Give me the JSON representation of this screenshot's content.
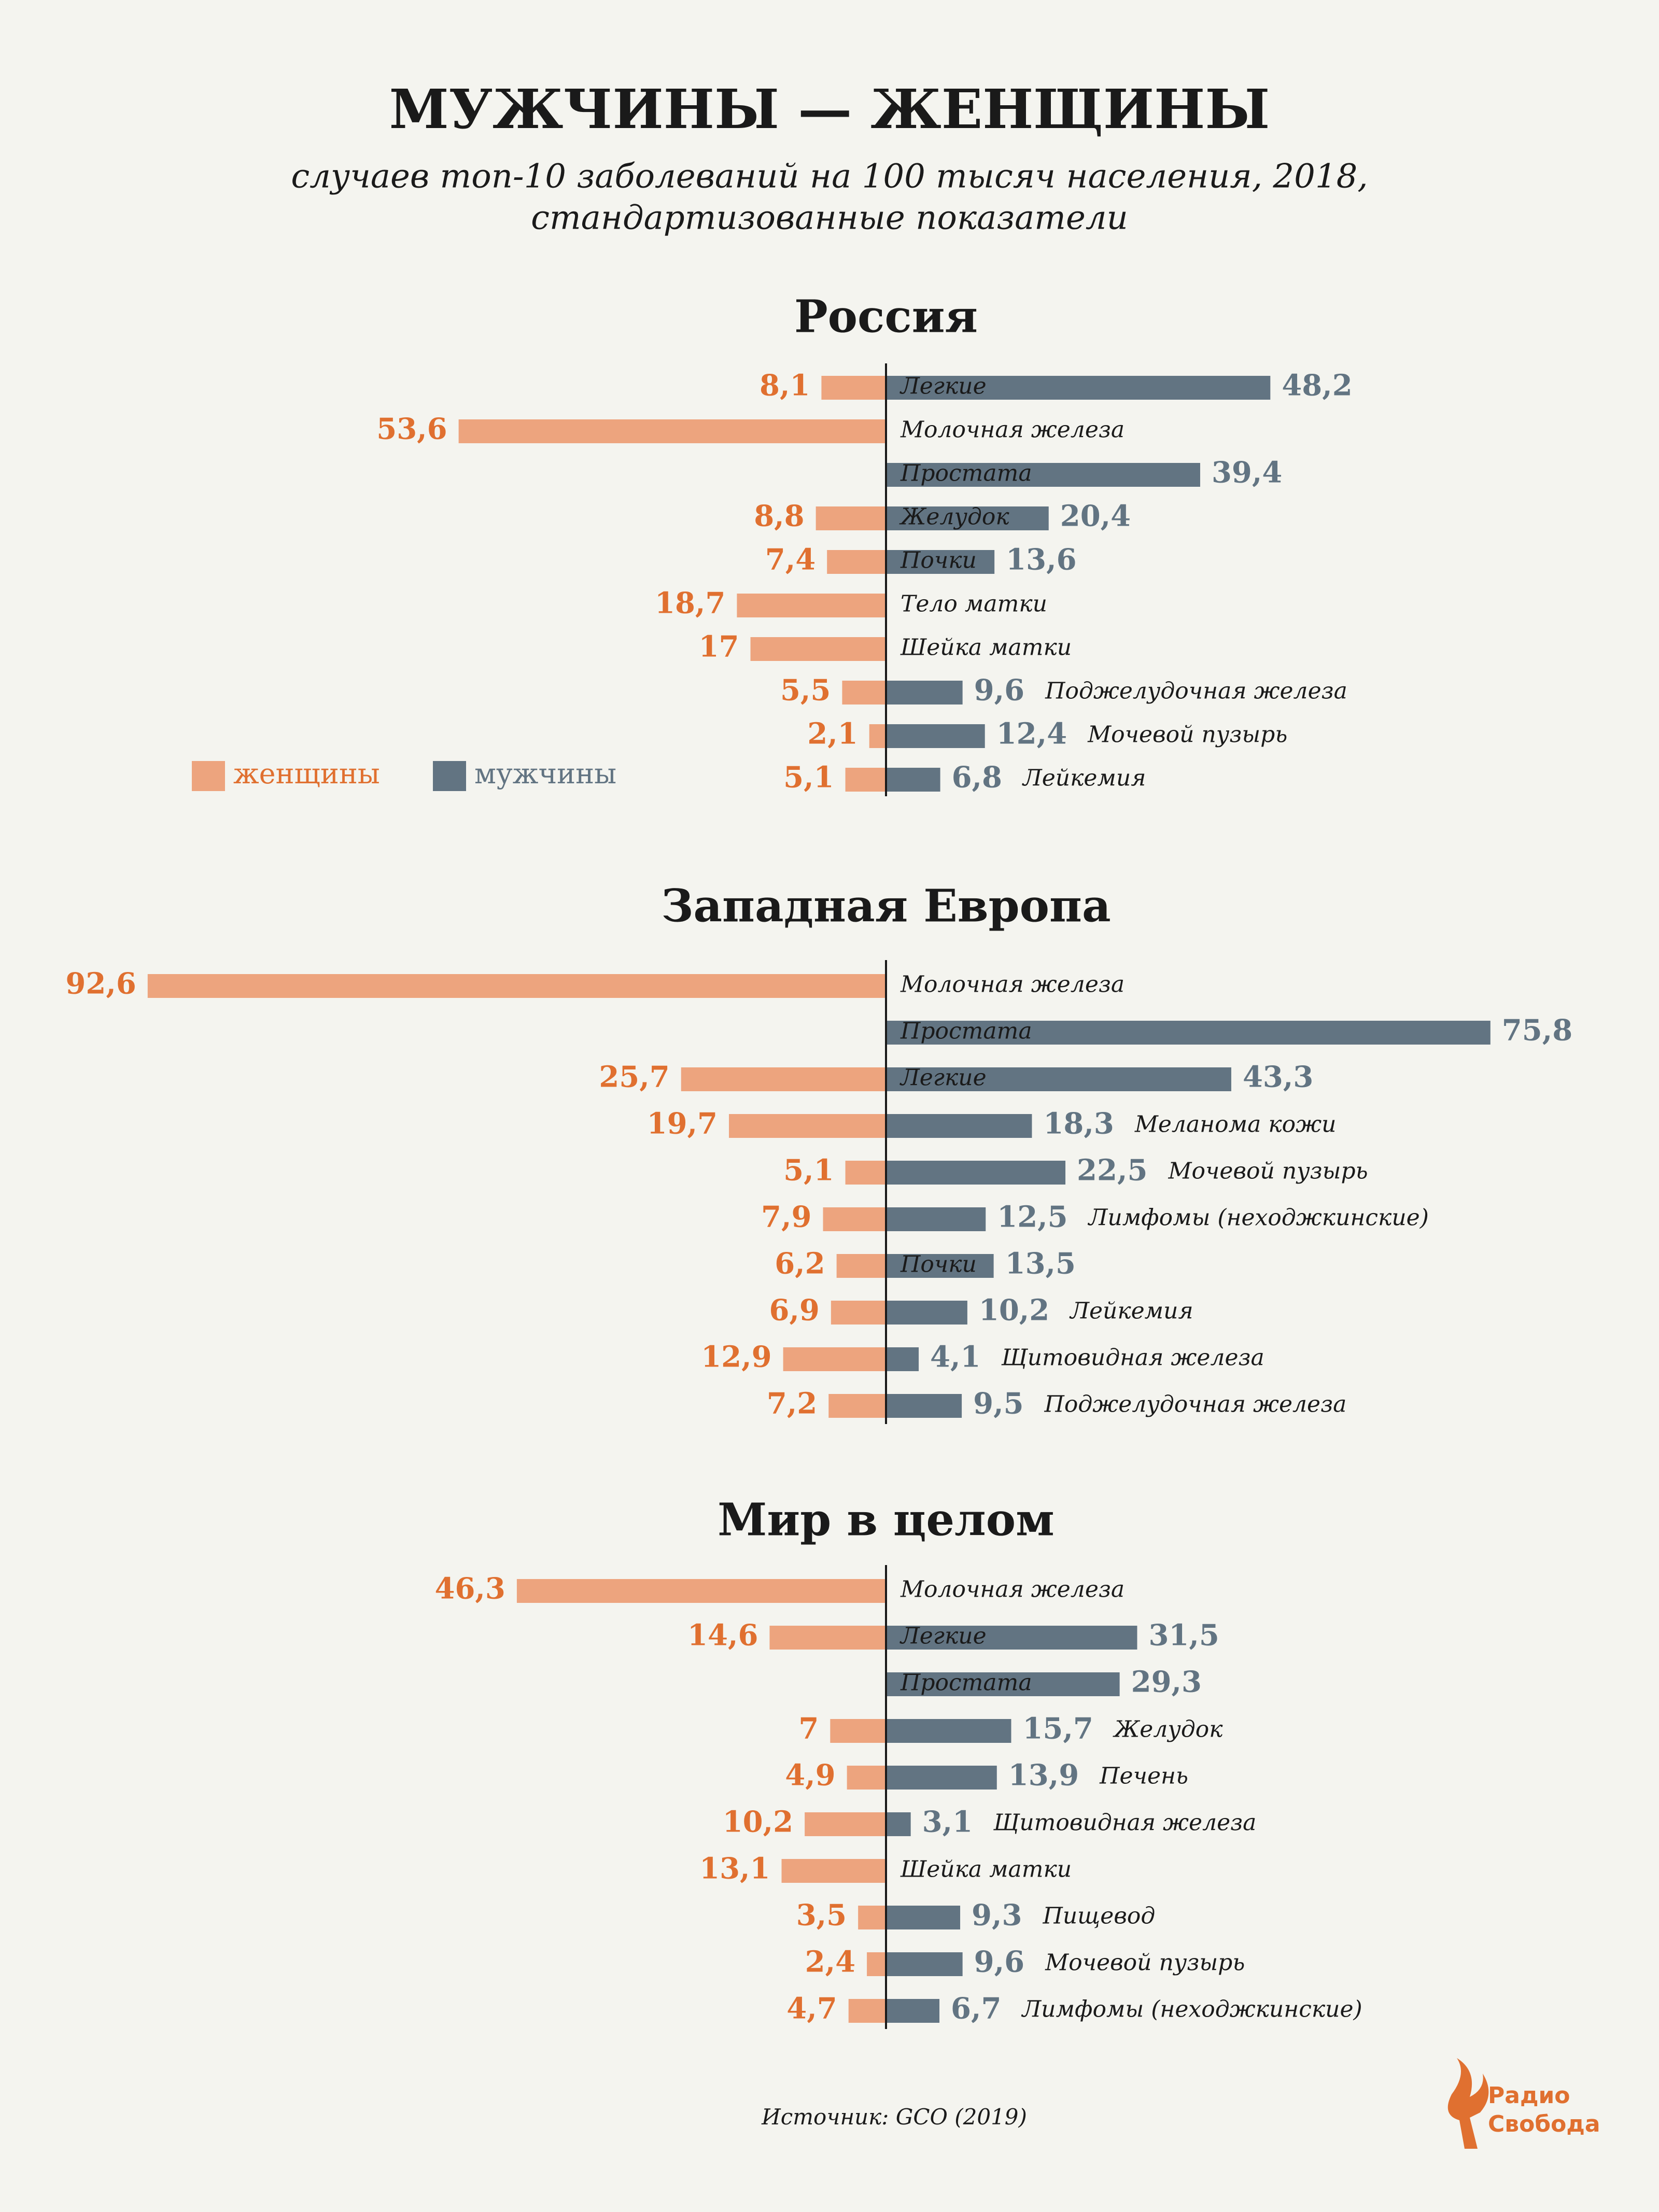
{
  "title": "МУЖЧИНЫ — ЖЕНЩИНЫ",
  "subtitle": [
    "случаев топ-10 заболеваний на 100 тысяч населения, 2018,",
    "стандартизованные показатели"
  ],
  "source": "Источник: GCO (2019)",
  "logo": [
    "Радио",
    "Свобода"
  ],
  "chart_data": [
    {
      "type": "butterfly",
      "title": "Россия",
      "categories": [
        "Легкие",
        "Молочная железа",
        "Простата",
        "Желудок",
        "Почки",
        "Тело матки",
        "Шейка матки",
        "Поджелудочная железа",
        "Мочевой пузырь",
        "Лейкемия"
      ],
      "series": [
        {
          "name": "женщины",
          "color": "#eda47e",
          "label_color": "#e07030",
          "side": "left",
          "values": [
            8.1,
            53.6,
            null,
            8.8,
            7.4,
            18.7,
            17,
            5.5,
            2.1,
            5.1
          ],
          "value_labels": [
            "8,1",
            "53,6",
            null,
            "8,8",
            "7,4",
            "18,7",
            "17",
            "5,5",
            "2,1",
            "5,1"
          ]
        },
        {
          "name": "мужчины",
          "color": "#627482",
          "label_color": "#627482",
          "side": "right",
          "values": [
            48.2,
            null,
            39.4,
            20.4,
            13.6,
            null,
            null,
            9.6,
            12.4,
            6.8
          ],
          "value_labels": [
            "48,2",
            null,
            "39,4",
            "20,4",
            "13,6",
            null,
            null,
            "9,6",
            "12,4",
            "6,8"
          ]
        }
      ]
    },
    {
      "type": "butterfly",
      "title": "Западная Европа",
      "categories": [
        "Молочная железа",
        "Простата",
        "Легкие",
        "Меланома кожи",
        "Мочевой пузырь",
        "Лимфомы (неходжкинские)",
        "Почки",
        "Лейкемия",
        "Щитовидная железа",
        "Поджелудочная железа"
      ],
      "series": [
        {
          "color": "#eda47e",
          "label_color": "#e07030",
          "side": "left",
          "values": [
            92.6,
            null,
            25.7,
            19.7,
            5.1,
            7.9,
            6.2,
            6.9,
            12.9,
            7.2
          ],
          "value_labels": [
            "92,6",
            null,
            "25,7",
            "19,7",
            "5,1",
            "7,9",
            "6,2",
            "6,9",
            "12,9",
            "7,2"
          ]
        },
        {
          "color": "#627482",
          "label_color": "#627482",
          "side": "right",
          "values": [
            null,
            75.8,
            43.3,
            18.3,
            22.5,
            12.5,
            13.5,
            10.2,
            4.1,
            9.5
          ],
          "value_labels": [
            null,
            "75,8",
            "43,3",
            "18,3",
            "22,5",
            "12,5",
            "13,5",
            "10,2",
            "4,1",
            "9,5"
          ]
        }
      ]
    },
    {
      "type": "butterfly",
      "title": "Мир в целом",
      "categories": [
        "Молочная железа",
        "Легкие",
        "Простата",
        "Желудок",
        "Печень",
        "Щитовидная железа",
        "Шейка матки",
        "Пищевод",
        "Мочевой пузырь",
        "Лимфомы (неходжкинские)"
      ],
      "series": [
        {
          "color": "#eda47e",
          "label_color": "#e07030",
          "side": "left",
          "values": [
            46.3,
            14.6,
            null,
            7,
            4.9,
            10.2,
            13.1,
            3.5,
            2.4,
            4.7
          ],
          "value_labels": [
            "46,3",
            "14,6",
            null,
            "7",
            "4,9",
            "10,2",
            "13,1",
            "3,5",
            "2,4",
            "4,7"
          ]
        },
        {
          "color": "#627482",
          "label_color": "#627482",
          "side": "right",
          "values": [
            null,
            31.5,
            29.3,
            15.7,
            13.9,
            3.1,
            null,
            9.3,
            9.6,
            6.7
          ],
          "value_labels": [
            null,
            "31,5",
            "29,3",
            "15,7",
            "13,9",
            "3,1",
            null,
            "9,3",
            "9,6",
            "6,7"
          ]
        }
      ]
    }
  ]
}
